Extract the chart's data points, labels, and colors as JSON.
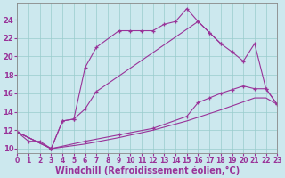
{
  "background_color": "#cce8ee",
  "line_color": "#993399",
  "grid_color": "#99cccc",
  "xlabel": "Windchill (Refroidissement éolien,°C)",
  "xlim": [
    0,
    23
  ],
  "ylim": [
    9.5,
    25.8
  ],
  "yticks": [
    10,
    12,
    14,
    16,
    18,
    20,
    22,
    24
  ],
  "xticks": [
    0,
    1,
    2,
    3,
    4,
    5,
    6,
    7,
    8,
    9,
    10,
    11,
    12,
    13,
    14,
    15,
    16,
    17,
    18,
    19,
    20,
    21,
    22,
    23
  ],
  "c1x": [
    0,
    1,
    2,
    3,
    4,
    5,
    6,
    7,
    9,
    10,
    11,
    12,
    13,
    14,
    15,
    16,
    17,
    18
  ],
  "c1y": [
    11.8,
    10.8,
    10.8,
    10.0,
    13.0,
    13.2,
    18.8,
    21.0,
    22.8,
    22.8,
    22.8,
    22.8,
    23.5,
    23.8,
    25.2,
    23.8,
    22.6,
    21.4
  ],
  "c2x": [
    0,
    3,
    4,
    5,
    6,
    7,
    16,
    17,
    18,
    19,
    20,
    21,
    22,
    23
  ],
  "c2y": [
    11.8,
    10.0,
    13.0,
    13.2,
    14.3,
    16.2,
    23.8,
    22.6,
    21.4,
    20.5,
    19.5,
    21.4,
    16.5,
    14.8
  ],
  "c3x": [
    0,
    3,
    6,
    9,
    12,
    15,
    16,
    17,
    18,
    19,
    20,
    21,
    22,
    23
  ],
  "c3y": [
    11.8,
    10.0,
    10.8,
    11.5,
    12.2,
    13.5,
    15.0,
    15.5,
    16.0,
    16.4,
    16.8,
    16.5,
    16.5,
    14.8
  ],
  "c4x": [
    0,
    3,
    6,
    9,
    12,
    15,
    18,
    21,
    22,
    23
  ],
  "c4y": [
    11.8,
    10.0,
    10.5,
    11.2,
    12.0,
    13.0,
    14.2,
    15.5,
    15.5,
    14.8
  ]
}
